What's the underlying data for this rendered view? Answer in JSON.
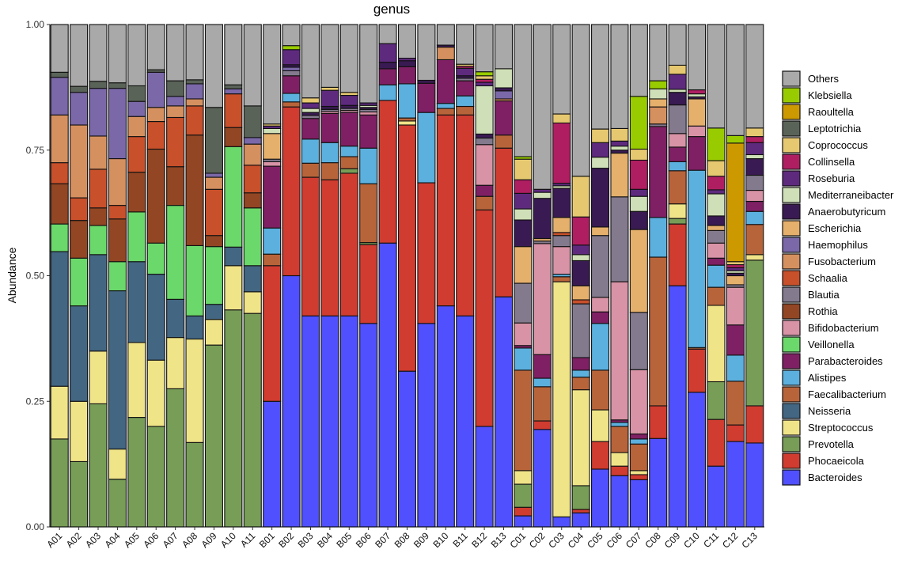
{
  "chart_data": {
    "type": "bar",
    "stacked": true,
    "title": "genus",
    "xlabel": "",
    "ylabel": "Abundance",
    "ylim": [
      0,
      1
    ],
    "yticks": [
      "0.00",
      "0.25",
      "0.50",
      "0.75",
      "1.00"
    ],
    "legend_position": "right",
    "legend_title": "",
    "genera": [
      {
        "name": "Others",
        "color": "#a9a9a9"
      },
      {
        "name": "Klebsiella",
        "color": "#99cc00"
      },
      {
        "name": "Raoultella",
        "color": "#cc9900"
      },
      {
        "name": "Leptotrichia",
        "color": "#5a6358"
      },
      {
        "name": "Coprococcus",
        "color": "#e6c870"
      },
      {
        "name": "Collinsella",
        "color": "#b01e62"
      },
      {
        "name": "Roseburia",
        "color": "#5e2a7e"
      },
      {
        "name": "Mediterraneibacter",
        "color": "#cfdfb7"
      },
      {
        "name": "Anaerobutyricum",
        "color": "#3a1a52"
      },
      {
        "name": "Escherichia",
        "color": "#e5b06c"
      },
      {
        "name": "Haemophilus",
        "color": "#7a68a8"
      },
      {
        "name": "Fusobacterium",
        "color": "#d59060"
      },
      {
        "name": "Schaalia",
        "color": "#c8502a"
      },
      {
        "name": "Blautia",
        "color": "#837a8e"
      },
      {
        "name": "Rothia",
        "color": "#924623"
      },
      {
        "name": "Bifidobacterium",
        "color": "#d893a6"
      },
      {
        "name": "Veillonella",
        "color": "#6ad86a"
      },
      {
        "name": "Parabacteroides",
        "color": "#7f2064"
      },
      {
        "name": "Alistipes",
        "color": "#5cb0de"
      },
      {
        "name": "Faecalibacterium",
        "color": "#b8643a"
      },
      {
        "name": "Neisseria",
        "color": "#436682"
      },
      {
        "name": "Streptococcus",
        "color": "#f0e488"
      },
      {
        "name": "Prevotella",
        "color": "#779d57"
      },
      {
        "name": "Phocaeicola",
        "color": "#d03c30"
      },
      {
        "name": "Bacteroides",
        "color": "#5050ff"
      }
    ],
    "samples": [
      {
        "name": "A01",
        "values": {
          "Prevotella": 0.175,
          "Streptococcus": 0.105,
          "Neisseria": 0.268,
          "Veillonella": 0.055,
          "Rothia": 0.08,
          "Schaalia": 0.042,
          "Fusobacterium": 0.095,
          "Haemophilus": 0.075,
          "Leptotrichia": 0.01,
          "Others": 0.095
        }
      },
      {
        "name": "A02",
        "values": {
          "Prevotella": 0.13,
          "Streptococcus": 0.12,
          "Neisseria": 0.19,
          "Veillonella": 0.095,
          "Rothia": 0.075,
          "Schaalia": 0.045,
          "Fusobacterium": 0.145,
          "Haemophilus": 0.065,
          "Leptotrichia": 0.012,
          "Others": 0.123
        }
      },
      {
        "name": "A03",
        "values": {
          "Prevotella": 0.245,
          "Streptococcus": 0.105,
          "Neisseria": 0.192,
          "Veillonella": 0.058,
          "Rothia": 0.035,
          "Schaalia": 0.077,
          "Fusobacterium": 0.066,
          "Haemophilus": 0.095,
          "Leptotrichia": 0.014,
          "Others": 0.113
        }
      },
      {
        "name": "A04",
        "values": {
          "Prevotella": 0.095,
          "Streptococcus": 0.06,
          "Neisseria": 0.315,
          "Veillonella": 0.058,
          "Rothia": 0.085,
          "Schaalia": 0.027,
          "Fusobacterium": 0.093,
          "Haemophilus": 0.14,
          "Leptotrichia": 0.011,
          "Others": 0.116
        }
      },
      {
        "name": "A05",
        "values": {
          "Prevotella": 0.218,
          "Streptococcus": 0.149,
          "Neisseria": 0.161,
          "Veillonella": 0.099,
          "Rothia": 0.079,
          "Schaalia": 0.071,
          "Fusobacterium": 0.04,
          "Haemophilus": 0.03,
          "Leptotrichia": 0.031,
          "Others": 0.122
        }
      },
      {
        "name": "A06",
        "values": {
          "Prevotella": 0.2,
          "Streptococcus": 0.132,
          "Neisseria": 0.171,
          "Veillonella": 0.062,
          "Rothia": 0.187,
          "Schaalia": 0.055,
          "Fusobacterium": 0.028,
          "Haemophilus": 0.07,
          "Leptotrichia": 0.005,
          "Others": 0.09
        }
      },
      {
        "name": "A07",
        "values": {
          "Prevotella": 0.275,
          "Streptococcus": 0.102,
          "Neisseria": 0.076,
          "Veillonella": 0.187,
          "Rothia": 0.077,
          "Schaalia": 0.098,
          "Fusobacterium": 0.023,
          "Haemophilus": 0.019,
          "Leptotrichia": 0.031,
          "Others": 0.112
        }
      },
      {
        "name": "A08",
        "values": {
          "Prevotella": 0.168,
          "Streptococcus": 0.206,
          "Neisseria": 0.046,
          "Veillonella": 0.14,
          "Rothia": 0.22,
          "Schaalia": 0.058,
          "Fusobacterium": 0.014,
          "Haemophilus": 0.03,
          "Leptotrichia": 0.008,
          "Others": 0.11
        }
      },
      {
        "name": "A09",
        "values": {
          "Prevotella": 0.362,
          "Streptococcus": 0.051,
          "Neisseria": 0.03,
          "Veillonella": 0.115,
          "Rothia": 0.022,
          "Schaalia": 0.092,
          "Fusobacterium": 0.024,
          "Haemophilus": 0.008,
          "Leptotrichia": 0.131,
          "Others": 0.165
        }
      },
      {
        "name": "A10",
        "values": {
          "Prevotella": 0.432,
          "Streptococcus": 0.088,
          "Neisseria": 0.037,
          "Veillonella": 0.2,
          "Rothia": 0.038,
          "Schaalia": 0.067,
          "Haemophilus": 0.01,
          "Leptotrichia": 0.008,
          "Others": 0.12
        }
      },
      {
        "name": "A11",
        "values": {
          "Prevotella": 0.425,
          "Streptococcus": 0.043,
          "Neisseria": 0.052,
          "Veillonella": 0.115,
          "Rothia": 0.03,
          "Schaalia": 0.055,
          "Fusobacterium": 0.042,
          "Haemophilus": 0.013,
          "Leptotrichia": 0.063,
          "Others": 0.162
        }
      },
      {
        "name": "B01",
        "values": {
          "Bacteroides": 0.25,
          "Phocaeicola": 0.27,
          "Faecalibacterium": 0.023,
          "Alistipes": 0.052,
          "Parabacteroides": 0.123,
          "Bifidobacterium": 0.009,
          "Blautia": 0.005,
          "Escherichia": 0.051,
          "Mediterraneibacter": 0.01,
          "Roseburia": 0.005,
          "Coprococcus": 0.004,
          "Others": 0.198
        }
      },
      {
        "name": "B02",
        "values": {
          "Bacteroides": 0.5,
          "Phocaeicola": 0.336,
          "Faecalibacterium": 0.01,
          "Alistipes": 0.017,
          "Parabacteroides": 0.035,
          "Blautia": 0.01,
          "Haemophilus": 0.007,
          "Anaerobutyricum": 0.005,
          "Roseburia": 0.03,
          "Klebsiella": 0.008,
          "Others": 0.042
        }
      },
      {
        "name": "B03",
        "values": {
          "Bacteroides": 0.42,
          "Phocaeicola": 0.276,
          "Faecalibacterium": 0.028,
          "Alistipes": 0.048,
          "Parabacteroides": 0.041,
          "Blautia": 0.006,
          "Anaerobutyricum": 0.006,
          "Mediterraneibacter": 0.008,
          "Roseburia": 0.011,
          "Coprococcus": 0.01,
          "Others": 0.146
        }
      },
      {
        "name": "B04",
        "values": {
          "Bacteroides": 0.42,
          "Phocaeicola": 0.271,
          "Faecalibacterium": 0.034,
          "Alistipes": 0.04,
          "Parabacteroides": 0.058,
          "Bifidobacterium": 0.004,
          "Blautia": 0.004,
          "Anaerobutyricum": 0.006,
          "Roseburia": 0.032,
          "Coprococcus": 0.006,
          "Others": 0.125
        }
      },
      {
        "name": "B05",
        "values": {
          "Bacteroides": 0.42,
          "Phocaeicola": 0.284,
          "Prevotella": 0.009,
          "Faecalibacterium": 0.024,
          "Alistipes": 0.021,
          "Parabacteroides": 0.067,
          "Bifidobacterium": 0.004,
          "Blautia": 0.004,
          "Anaerobutyricum": 0.006,
          "Roseburia": 0.02,
          "Coprococcus": 0.006,
          "Others": 0.135
        }
      },
      {
        "name": "B06",
        "values": {
          "Bacteroides": 0.405,
          "Phocaeicola": 0.157,
          "Prevotella": 0.004,
          "Faecalibacterium": 0.117,
          "Alistipes": 0.071,
          "Parabacteroides": 0.066,
          "Bifidobacterium": 0.006,
          "Blautia": 0.005,
          "Anaerobutyricum": 0.004,
          "Mediterraneibacter": 0.004,
          "Roseburia": 0.005,
          "Others": 0.156
        }
      },
      {
        "name": "B07",
        "values": {
          "Bacteroides": 0.565,
          "Phocaeicola": 0.284,
          "Alistipes": 0.031,
          "Parabacteroides": 0.032,
          "Anaerobutyricum": 0.013,
          "Roseburia": 0.037,
          "Others": 0.038
        }
      },
      {
        "name": "B08",
        "values": {
          "Bacteroides": 0.31,
          "Phocaeicola": 0.49,
          "Streptococcus": 0.008,
          "Faecalibacterium": 0.006,
          "Alistipes": 0.068,
          "Parabacteroides": 0.034,
          "Anaerobutyricum": 0.012,
          "Roseburia": 0.005,
          "Others": 0.067
        }
      },
      {
        "name": "B09",
        "values": {
          "Bacteroides": 0.405,
          "Phocaeicola": 0.28,
          "Alistipes": 0.14,
          "Parabacteroides": 0.058,
          "Anaerobutyricum": 0.006,
          "Others": 0.111
        }
      },
      {
        "name": "B10",
        "values": {
          "Bacteroides": 0.44,
          "Phocaeicola": 0.38,
          "Faecalibacterium": 0.013,
          "Alistipes": 0.01,
          "Parabacteroides": 0.087,
          "Fusobacterium": 0.025,
          "Anaerobutyricum": 0.004,
          "Others": 0.041
        }
      },
      {
        "name": "B11",
        "values": {
          "Bacteroides": 0.42,
          "Phocaeicola": 0.4,
          "Faecalibacterium": 0.017,
          "Alistipes": 0.021,
          "Parabacteroides": 0.03,
          "Blautia": 0.005,
          "Anaerobutyricum": 0.005,
          "Roseburia": 0.015,
          "Collinsella": 0.004,
          "Coprococcus": 0.004,
          "Others": 0.079
        }
      },
      {
        "name": "B12",
        "values": {
          "Bacteroides": 0.2,
          "Phocaeicola": 0.431,
          "Faecalibacterium": 0.027,
          "Parabacteroides": 0.022,
          "Bifidobacterium": 0.081,
          "Blautia": 0.013,
          "Anaerobutyricum": 0.008,
          "Mediterraneibacter": 0.096,
          "Roseburia": 0.007,
          "Collinsella": 0.006,
          "Coprococcus": 0.007,
          "Klebsiella": 0.008,
          "Others": 0.094
        }
      },
      {
        "name": "B13",
        "values": {
          "Bacteroides": 0.458,
          "Phocaeicola": 0.296,
          "Faecalibacterium": 0.026,
          "Parabacteroides": 0.068,
          "Fusobacterium": 0.004,
          "Haemophilus": 0.016,
          "Anaerobutyricum": 0.006,
          "Mediterraneibacter": 0.038,
          "Others": 0.088
        }
      },
      {
        "name": "C01",
        "values": {
          "Bacteroides": 0.022,
          "Phocaeicola": 0.017,
          "Prevotella": 0.046,
          "Streptococcus": 0.027,
          "Faecalibacterium": 0.2,
          "Alistipes": 0.044,
          "Parabacteroides": 0.005,
          "Bifidobacterium": 0.045,
          "Blautia": 0.079,
          "Escherichia": 0.073,
          "Anaerobutyricum": 0.053,
          "Mediterraneibacter": 0.022,
          "Roseburia": 0.031,
          "Collinsella": 0.027,
          "Coprococcus": 0.041,
          "Klebsiella": 0.005,
          "Others": 0.263
        }
      },
      {
        "name": "C02",
        "values": {
          "Bacteroides": 0.194,
          "Phocaeicola": 0.017,
          "Faecalibacterium": 0.068,
          "Alistipes": 0.017,
          "Parabacteroides": 0.047,
          "Bifidobacterium": 0.221,
          "Blautia": 0.005,
          "Escherichia": 0.005,
          "Anaerobutyricum": 0.08,
          "Mediterraneibacter": 0.012,
          "Roseburia": 0.006,
          "Others": 0.328
        }
      },
      {
        "name": "C03",
        "values": {
          "Bacteroides": 0.02,
          "Streptococcus": 0.468,
          "Faecalibacterium": 0.01,
          "Alistipes": 0.005,
          "Bifidobacterium": 0.055,
          "Blautia": 0.022,
          "Schaalia": 0.006,
          "Escherichia": 0.03,
          "Anaerobutyricum": 0.058,
          "Mediterraneibacter": 0.005,
          "Roseburia": 0.005,
          "Collinsella": 0.12,
          "Coprococcus": 0.018,
          "Others": 0.178
        }
      },
      {
        "name": "C04",
        "values": {
          "Bacteroides": 0.028,
          "Phocaeicola": 0.007,
          "Prevotella": 0.047,
          "Streptococcus": 0.191,
          "Faecalibacterium": 0.025,
          "Alistipes": 0.014,
          "Parabacteroides": 0.025,
          "Blautia": 0.107,
          "Schaalia": 0.008,
          "Escherichia": 0.028,
          "Anaerobutyricum": 0.05,
          "Mediterraneibacter": 0.012,
          "Roseburia": 0.019,
          "Collinsella": 0.056,
          "Coprococcus": 0.081,
          "Others": 0.302
        }
      },
      {
        "name": "C05",
        "values": {
          "Bacteroides": 0.115,
          "Phocaeicola": 0.055,
          "Streptococcus": 0.063,
          "Faecalibacterium": 0.079,
          "Alistipes": 0.093,
          "Parabacteroides": 0.023,
          "Bifidobacterium": 0.029,
          "Blautia": 0.123,
          "Escherichia": 0.017,
          "Anaerobutyricum": 0.117,
          "Mediterraneibacter": 0.022,
          "Roseburia": 0.029,
          "Coprococcus": 0.027,
          "Others": 0.208
        }
      },
      {
        "name": "C06",
        "values": {
          "Bacteroides": 0.102,
          "Phocaeicola": 0.019,
          "Streptococcus": 0.027,
          "Faecalibacterium": 0.052,
          "Alistipes": 0.008,
          "Parabacteroides": 0.005,
          "Bifidobacterium": 0.275,
          "Blautia": 0.169,
          "Escherichia": 0.087,
          "Anaerobutyricum": 0.006,
          "Mediterraneibacter": 0.008,
          "Roseburia": 0.01,
          "Coprococcus": 0.025,
          "Others": 0.207
        }
      },
      {
        "name": "C07",
        "values": {
          "Bacteroides": 0.094,
          "Phocaeicola": 0.01,
          "Streptococcus": 0.008,
          "Faecalibacterium": 0.053,
          "Alistipes": 0.01,
          "Parabacteroides": 0.01,
          "Bifidobacterium": 0.128,
          "Blautia": 0.114,
          "Escherichia": 0.165,
          "Anaerobutyricum": 0.036,
          "Mediterraneibacter": 0.03,
          "Roseburia": 0.014,
          "Collinsella": 0.058,
          "Coprococcus": 0.022,
          "Klebsiella": 0.105,
          "Others": 0.143
        }
      },
      {
        "name": "C08",
        "values": {
          "Bacteroides": 0.176,
          "Phocaeicola": 0.065,
          "Faecalibacterium": 0.296,
          "Alistipes": 0.079,
          "Parabacteroides": 0.181,
          "Blautia": 0.005,
          "Fusobacterium": 0.034,
          "Escherichia": 0.016,
          "Mediterraneibacter": 0.02,
          "Klebsiella": 0.016,
          "Others": 0.112
        }
      },
      {
        "name": "C09",
        "values": {
          "Bacteroides": 0.48,
          "Phocaeicola": 0.123,
          "Prevotella": 0.011,
          "Streptococcus": 0.029,
          "Faecalibacterium": 0.066,
          "Alistipes": 0.018,
          "Parabacteroides": 0.029,
          "Bifidobacterium": 0.027,
          "Blautia": 0.057,
          "Anaerobutyricum": 0.025,
          "Mediterraneibacter": 0.006,
          "Roseburia": 0.03,
          "Coprococcus": 0.018,
          "Others": 0.081
        }
      },
      {
        "name": "C10",
        "values": {
          "Bacteroides": 0.268,
          "Phocaeicola": 0.086,
          "Faecalibacterium": 0.003,
          "Alistipes": 0.353,
          "Parabacteroides": 0.067,
          "Bifidobacterium": 0.021,
          "Escherichia": 0.054,
          "Anaerobutyricum": 0.004,
          "Mediterraneibacter": 0.006,
          "Collinsella": 0.008,
          "Others": 0.13
        }
      },
      {
        "name": "C11",
        "values": {
          "Bacteroides": 0.121,
          "Phocaeicola": 0.093,
          "Prevotella": 0.075,
          "Streptococcus": 0.152,
          "Faecalibacterium": 0.036,
          "Alistipes": 0.044,
          "Parabacteroides": 0.014,
          "Bifidobacterium": 0.03,
          "Blautia": 0.025,
          "Escherichia": 0.01,
          "Anaerobutyricum": 0.019,
          "Mediterraneibacter": 0.044,
          "Roseburia": 0.008,
          "Collinsella": 0.027,
          "Coprococcus": 0.031,
          "Klebsiella": 0.065,
          "Others": 0.206
        }
      },
      {
        "name": "C12",
        "values": {
          "Bacteroides": 0.17,
          "Phocaeicola": 0.033,
          "Faecalibacterium": 0.087,
          "Alistipes": 0.052,
          "Parabacteroides": 0.06,
          "Bifidobacterium": 0.075,
          "Blautia": 0.005,
          "Escherichia": 0.018,
          "Anaerobutyricum": 0.005,
          "Mediterraneibacter": 0.005,
          "Roseburia": 0.006,
          "Collinsella": 0.006,
          "Coprococcus": 0.006,
          "Raoultella": 0.236,
          "Klebsiella": 0.015,
          "Others": 0.221
        }
      },
      {
        "name": "C13",
        "values": {
          "Bacteroides": 0.167,
          "Phocaeicola": 0.074,
          "Prevotella": 0.29,
          "Streptococcus": 0.011,
          "Faecalibacterium": 0.06,
          "Alistipes": 0.026,
          "Parabacteroides": 0.02,
          "Bifidobacterium": 0.022,
          "Blautia": 0.03,
          "Anaerobutyricum": 0.033,
          "Mediterraneibacter": 0.008,
          "Roseburia": 0.024,
          "Collinsella": 0.012,
          "Coprococcus": 0.017,
          "Others": 0.206
        }
      }
    ]
  }
}
